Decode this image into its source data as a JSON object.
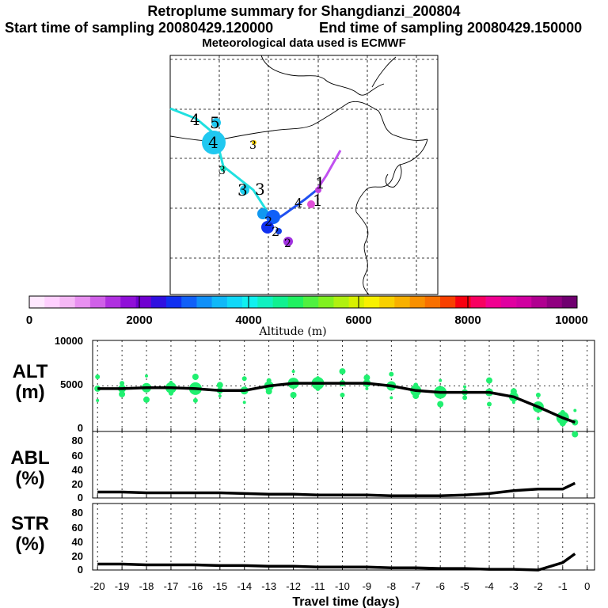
{
  "header": {
    "title": "Retroplume summary for Shangdianzi_200804",
    "start_label": "Start time of sampling 20080429.120000",
    "end_label": "End time of sampling 20080429.150000",
    "met_label": "Meteorological data used is ECMWF"
  },
  "colorbar": {
    "ticks": [
      "0",
      "2000",
      "4000",
      "6000",
      "8000",
      "10000"
    ],
    "label": "Altitude (m)",
    "colors": [
      "#ffe8ff",
      "#ffd0ff",
      "#f5b8f5",
      "#e890f0",
      "#d060e8",
      "#b030e0",
      "#9010d8",
      "#7000d0",
      "#3010e0",
      "#1030f0",
      "#1060f8",
      "#1090f8",
      "#10b8f8",
      "#10d8f8",
      "#10f0f0",
      "#10f0c0",
      "#10f090",
      "#20f060",
      "#50f040",
      "#80f020",
      "#b0f010",
      "#d8f000",
      "#f8f000",
      "#f8d000",
      "#f8b000",
      "#f89000",
      "#f87000",
      "#f84000",
      "#f80010",
      "#f80060",
      "#f00090",
      "#e000a0",
      "#d000a0",
      "#b00090",
      "#900080",
      "#700070"
    ]
  },
  "map_labels": {
    "mk_4a": "4",
    "mk_5a": "5",
    "mk_4b": "4",
    "mk_3a": "3",
    "mk_3b": "3",
    "mk_3c": "3",
    "mk_3d": "3",
    "mk_1a": "1",
    "mk_4c": "4",
    "mk_1b": "1",
    "mk_2a": "2",
    "mk_2b": "2",
    "mk_2c": "2"
  },
  "chart_data": [
    {
      "type": "line",
      "panel": "ALT",
      "ylabel": "ALT\n(m)",
      "ylabel_line1": "ALT",
      "ylabel_line2": "(m)",
      "ylim": [
        0,
        10000
      ],
      "yticks": [
        "10000",
        "5000",
        "0"
      ],
      "xlim": [
        -20,
        0
      ],
      "x": [
        -20,
        -19,
        -18,
        -17,
        -16,
        -15,
        -14,
        -13,
        -12,
        -11,
        -10,
        -9,
        -8,
        -7,
        -6,
        -5,
        -4,
        -3,
        -2,
        -1,
        -0.5
      ],
      "values": [
        4700,
        4700,
        4800,
        4800,
        4700,
        4500,
        4500,
        5000,
        5300,
        5300,
        5300,
        5300,
        5000,
        4500,
        4300,
        4300,
        4300,
        3800,
        2700,
        1500,
        1000
      ]
    },
    {
      "type": "line",
      "panel": "ABL",
      "ylabel_line1": "ABL",
      "ylabel_line2": "(%)",
      "ylim": [
        0,
        90
      ],
      "yticks": [
        "80",
        "60",
        "40",
        "20",
        "0"
      ],
      "xlim": [
        -20,
        0
      ],
      "x": [
        -20,
        -19,
        -18,
        -17,
        -16,
        -15,
        -14,
        -13,
        -12,
        -11,
        -10,
        -9,
        -8,
        -7,
        -6,
        -5,
        -4,
        -3,
        -2,
        -1,
        -0.5
      ],
      "values": [
        8,
        8,
        7,
        7,
        7,
        7,
        6,
        5,
        5,
        4,
        4,
        4,
        3,
        3,
        3,
        4,
        6,
        10,
        12,
        12,
        20
      ]
    },
    {
      "type": "line",
      "panel": "STR",
      "ylabel_line1": "STR",
      "ylabel_line2": "(%)",
      "ylim": [
        0,
        90
      ],
      "yticks": [
        "80",
        "60",
        "40",
        "20",
        "0"
      ],
      "xlim": [
        -20,
        0
      ],
      "x": [
        -20,
        -19,
        -18,
        -17,
        -16,
        -15,
        -14,
        -13,
        -12,
        -11,
        -10,
        -9,
        -8,
        -7,
        -6,
        -5,
        -4,
        -3,
        -2,
        -1,
        -0.5
      ],
      "values": [
        8,
        8,
        7,
        7,
        7,
        6,
        6,
        5,
        5,
        4,
        4,
        4,
        3,
        3,
        2,
        2,
        1,
        1,
        0,
        10,
        22
      ]
    }
  ],
  "xaxis": {
    "ticks": [
      "-20",
      "-19",
      "-18",
      "-17",
      "-16",
      "-15",
      "-14",
      "-13",
      "-12",
      "-11",
      "-10",
      "-9",
      "-8",
      "-7",
      "-6",
      "-5",
      "-4",
      "-3",
      "-2",
      "-1",
      "0"
    ],
    "label": "Travel time (days)"
  }
}
